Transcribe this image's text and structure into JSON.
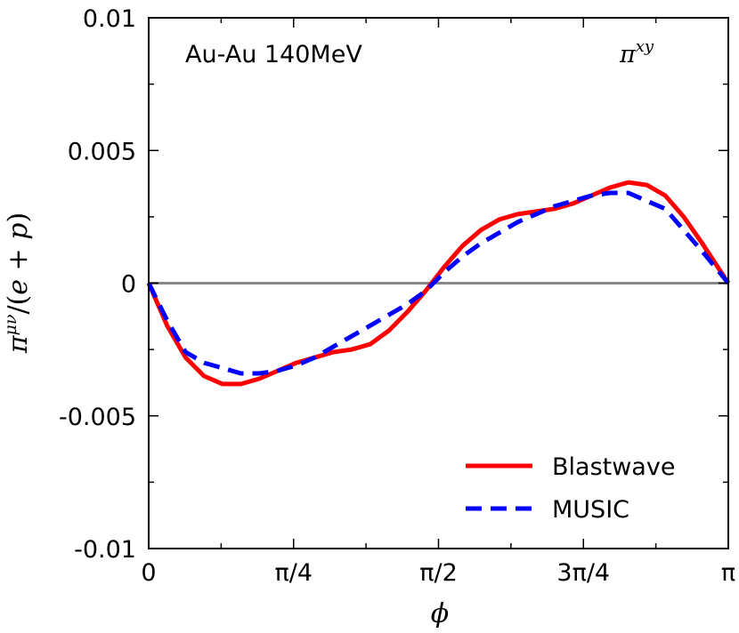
{
  "chart_data": {
    "type": "line",
    "title": "",
    "xlabel": "ϕ",
    "ylabel": "π^{μν}/(e + p)",
    "xlim": [
      0,
      3.14159
    ],
    "ylim": [
      -0.01,
      0.01
    ],
    "x_ticks": [
      {
        "value": 0,
        "label": "0"
      },
      {
        "value": 0.7854,
        "label": "π/4"
      },
      {
        "value": 1.5708,
        "label": "π/2"
      },
      {
        "value": 2.3562,
        "label": "3π/4"
      },
      {
        "value": 3.14159,
        "label": "π"
      }
    ],
    "y_ticks": [
      {
        "value": 0.01,
        "label": "0.01"
      },
      {
        "value": 0.005,
        "label": "0.005"
      },
      {
        "value": 0,
        "label": "0"
      },
      {
        "value": -0.005,
        "label": "-0.005"
      },
      {
        "value": -0.01,
        "label": "-0.01"
      }
    ],
    "annotations": {
      "system": "Au-Au 140MeV",
      "component": "π^{xy}"
    },
    "reference_line_y": 0,
    "legend_position": "bottom-right",
    "series": [
      {
        "name": "Blastwave",
        "color": "#ff0000",
        "style": "solid",
        "x": [
          0,
          0.1,
          0.2,
          0.3,
          0.4,
          0.5,
          0.6,
          0.7,
          0.8,
          0.9,
          1.0,
          1.1,
          1.2,
          1.3,
          1.4,
          1.5,
          1.6,
          1.7,
          1.8,
          1.9,
          2.0,
          2.1,
          2.2,
          2.3,
          2.4,
          2.5,
          2.6,
          2.7,
          2.8,
          2.9,
          3.0,
          3.14159
        ],
        "values": [
          0,
          -0.0016,
          -0.0028,
          -0.0035,
          -0.0038,
          -0.0038,
          -0.0036,
          -0.0033,
          -0.003,
          -0.0028,
          -0.0026,
          -0.0025,
          -0.0023,
          -0.0018,
          -0.0011,
          -0.0003,
          0.0006,
          0.0014,
          0.002,
          0.0024,
          0.0026,
          0.0027,
          0.0028,
          0.003,
          0.0033,
          0.0036,
          0.0038,
          0.0037,
          0.0033,
          0.0025,
          0.0015,
          0
        ]
      },
      {
        "name": "MUSIC",
        "color": "#0000ff",
        "style": "dashed",
        "x": [
          0,
          0.1,
          0.2,
          0.3,
          0.4,
          0.5,
          0.6,
          0.7,
          0.8,
          0.9,
          1.0,
          1.1,
          1.2,
          1.3,
          1.4,
          1.5,
          1.6,
          1.7,
          1.8,
          1.9,
          2.0,
          2.1,
          2.2,
          2.3,
          2.4,
          2.5,
          2.6,
          2.7,
          2.8,
          2.9,
          3.0,
          3.14159
        ],
        "values": [
          0,
          -0.0014,
          -0.0026,
          -0.003,
          -0.0032,
          -0.0034,
          -0.0034,
          -0.0033,
          -0.0031,
          -0.0028,
          -0.0024,
          -0.002,
          -0.0016,
          -0.0012,
          -0.0008,
          -0.0003,
          0.0004,
          0.001,
          0.0015,
          0.0019,
          0.0023,
          0.0026,
          0.0029,
          0.0031,
          0.0033,
          0.0034,
          0.0034,
          0.0031,
          0.0028,
          0.002,
          0.0012,
          0
        ]
      }
    ]
  }
}
